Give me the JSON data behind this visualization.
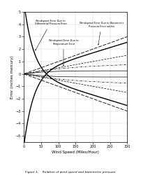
{
  "title": "",
  "xlabel": "Wind Speed (Miles/Hour)",
  "ylabel": "Error (inches mercury)",
  "xlim": [
    0,
    300
  ],
  "ylim": [
    -5.5,
    5.0
  ],
  "xticks": [
    0,
    50,
    100,
    150,
    200,
    250,
    300
  ],
  "yticks": [
    -5.0,
    -4.0,
    -3.0,
    -2.0,
    -1.0,
    0,
    1.0,
    2.0,
    3.0,
    4.0,
    5.0
  ],
  "caption": "Figure 1.    Relation of wind speed and barometric pressure",
  "background_color": "#ffffff",
  "grid_color": "#cccccc"
}
